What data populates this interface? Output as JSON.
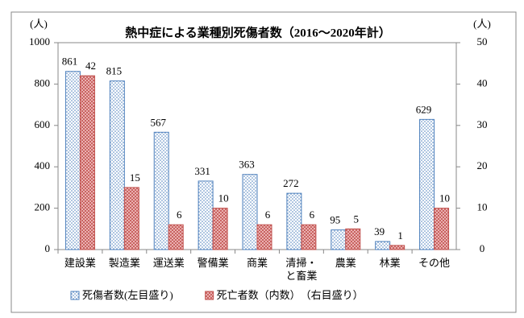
{
  "chart_data": {
    "type": "bar",
    "title": "熱中症による業種別死傷者数（2016～2020年計）",
    "y_label": "(人)",
    "y2_label": "(人)",
    "categories": [
      "建設業",
      "製造業",
      "運送業",
      "警備業",
      "商業",
      "清掃・と畜業",
      "農業",
      "林業",
      "その他"
    ],
    "series": [
      {
        "name": "死傷者数(左目盛り)",
        "color": "#4f81bd",
        "values": [
          861,
          815,
          567,
          331,
          363,
          272,
          95,
          39,
          629
        ]
      },
      {
        "name": "死亡者数（内数）　（右目盛り）",
        "color": "#c0504d",
        "axis": "y2",
        "values": [
          42,
          15,
          6,
          10,
          6,
          6,
          5,
          1,
          10
        ]
      }
    ],
    "ylim": [
      0,
      1000
    ],
    "yticks": [
      0,
      200,
      400,
      600,
      800,
      1000
    ],
    "y2lim": [
      0,
      50
    ],
    "y2ticks": [
      0,
      10,
      20,
      30,
      40,
      50
    ],
    "grid": false,
    "legend": "bottom"
  }
}
